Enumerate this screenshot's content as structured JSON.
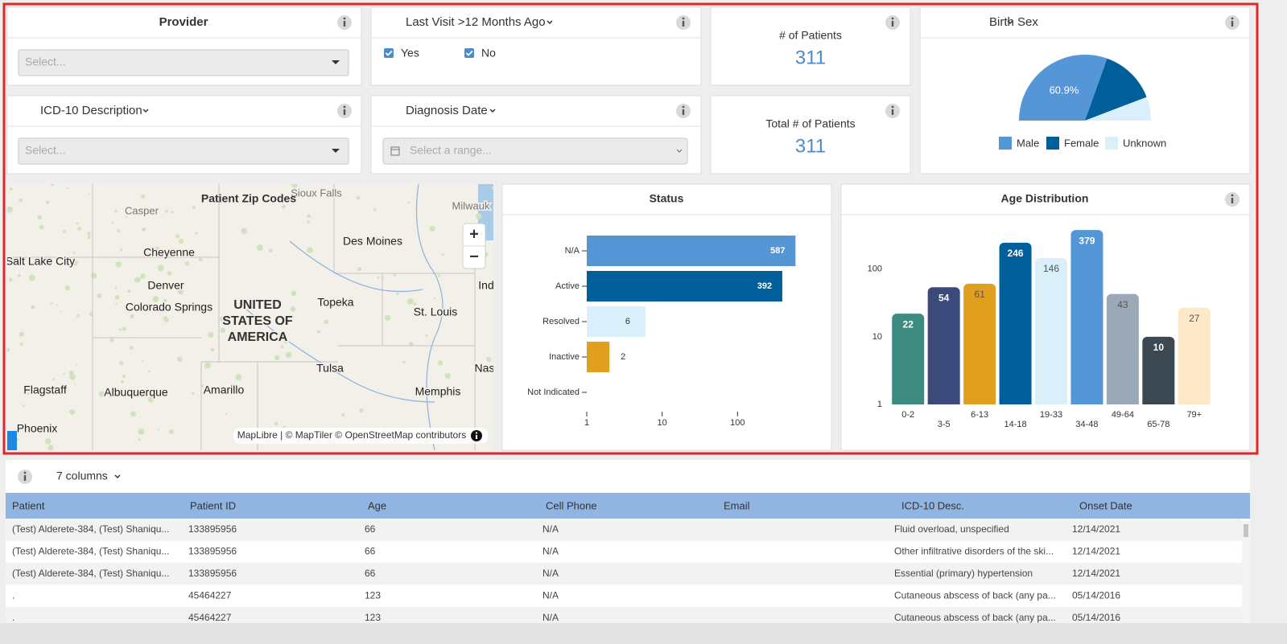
{
  "filters": [
    {
      "title": "Provider",
      "placeholder": "Select..."
    },
    {
      "title": "Last Visit >12 Months Ago",
      "options": [
        "Yes",
        "No"
      ]
    },
    {
      "title": "ICD-10 Description",
      "placeholder": "Select..."
    },
    {
      "title": "Diagnosis Date",
      "placeholder": "Select a range..."
    }
  ],
  "kpis": [
    {
      "label": "# of Patients",
      "value": 311
    },
    {
      "label": "Total # of Patients",
      "value": 311
    }
  ],
  "map": {
    "title": "Patient Zip Codes",
    "zoom_in": "+",
    "zoom_out": "−",
    "labels": [
      "Sioux Falls",
      "Casper",
      "Milwauk",
      "Salt Lake City",
      "Cheyenne",
      "Des Moines",
      "Ind",
      "Denver",
      "Colorado Springs",
      "UNITED",
      "STATES OF",
      "AMERICA",
      "Topeka",
      "St. Louis",
      "Tulsa",
      "Nas",
      "Flagstaff",
      "Albuquerque",
      "Amarillo",
      "Memphis",
      "Phoenix"
    ],
    "attribution": "MapLibre | © MapTiler © OpenStreetMap contributors"
  },
  "chart_data": [
    {
      "type": "pie",
      "title": "Birth Sex",
      "half": true,
      "categories": [
        "Male",
        "Female",
        "Unknown"
      ],
      "values": [
        60.9,
        27.5,
        11.6
      ],
      "value_labels": [
        "60.9%",
        null,
        null
      ],
      "colors": [
        "#5596d6",
        "#005f9a",
        "#d9f0fb"
      ],
      "legend": "bottom"
    },
    {
      "type": "bar",
      "orientation": "horizontal",
      "title": "Status",
      "categories": [
        "N/A",
        "Active",
        "Resolved",
        "Inactive",
        "Not Indicated"
      ],
      "values": [
        587,
        392,
        6,
        2,
        null
      ],
      "colors": [
        "#5596d6",
        "#005f9a",
        "#d9f0fb",
        "#e09f1f"
      ],
      "xlim": [
        1,
        1000
      ],
      "xticks": [
        1,
        10,
        100
      ],
      "log_scale": true
    },
    {
      "type": "bar",
      "orientation": "vertical",
      "title": "Age Distribution",
      "categories": [
        "0-2",
        "3-5",
        "6-13",
        "14-18",
        "19-33",
        "34-48",
        "49-64",
        "65-78",
        "79+"
      ],
      "values": [
        22,
        54,
        61,
        246,
        146,
        379,
        43,
        10,
        27
      ],
      "colors": [
        "#3d8a80",
        "#3b4a7a",
        "#e09f1f",
        "#005f9a",
        "#d9f0fb",
        "#5596d6",
        "#9aa8b8",
        "#3c4852",
        "#fde9c8"
      ],
      "ylim": [
        1,
        500
      ],
      "yticks": [
        1,
        10,
        100
      ],
      "log_scale": true
    }
  ],
  "table": {
    "columns_button": "7 columns",
    "columns": [
      "Patient",
      "Patient ID",
      "Age",
      "Cell Phone",
      "Email",
      "ICD-10 Desc.",
      "Onset Date"
    ],
    "rows": [
      [
        "(Test) Alderete-384, (Test) Shaniqu...",
        "133895956",
        "66",
        "N/A",
        null,
        "Fluid overload, unspecified",
        "12/14/2021"
      ],
      [
        "(Test) Alderete-384, (Test) Shaniqu...",
        "133895956",
        "66",
        "N/A",
        null,
        "Other infiltrative disorders of the ski...",
        "12/14/2021"
      ],
      [
        "(Test) Alderete-384, (Test) Shaniqu...",
        "133895956",
        "66",
        "N/A",
        null,
        "Essential (primary) hypertension",
        "12/14/2021"
      ],
      [
        ".",
        "45464227",
        "123",
        "N/A",
        null,
        "Cutaneous abscess of back (any pa...",
        "05/14/2016"
      ],
      [
        ".",
        "45464227",
        "123",
        "N/A",
        null,
        "Cutaneous abscess of back (any pa...",
        "05/14/2016"
      ]
    ]
  }
}
